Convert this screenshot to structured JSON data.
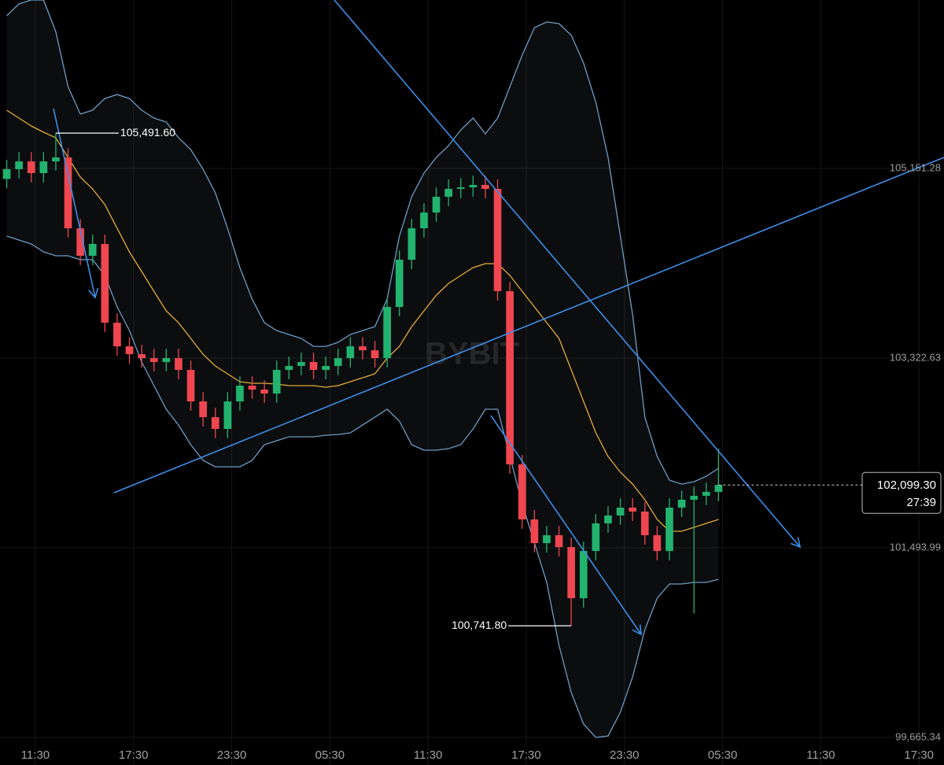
{
  "chart_data": {
    "type": "candlestick",
    "watermark": "BYBIT",
    "up_color": "#22b36f",
    "down_color": "#ef4650",
    "band_color": "#6f9cc4",
    "middle_color": "#e6ad38",
    "xlim": [
      -2.16,
      55.53
    ],
    "xticks": [
      {
        "value": 0,
        "label": "11:30"
      },
      {
        "value": 6,
        "label": "17:30"
      },
      {
        "value": 12,
        "label": "23:30"
      },
      {
        "value": 18,
        "label": "05:30"
      },
      {
        "value": 24,
        "label": "11:30"
      },
      {
        "value": 30,
        "label": "17:30"
      },
      {
        "value": 36,
        "label": "23:30"
      },
      {
        "value": 42,
        "label": "05:30"
      },
      {
        "value": 48,
        "label": "11:30"
      },
      {
        "value": 54,
        "label": "17:30"
      }
    ],
    "ylim": [
      99399.7,
      106775
    ],
    "yticks": [
      {
        "value": 99665.34,
        "label": "99,665.34"
      },
      {
        "value": 101493.99,
        "label": "101,493.99"
      },
      {
        "value": 103322.63,
        "label": "103,322.63"
      },
      {
        "value": 105151.28,
        "label": "105,151.28"
      }
    ],
    "grid": true,
    "x": [
      -1.75,
      -1,
      -0.25,
      0.5,
      1.25,
      2,
      2.75,
      3.5,
      4.25,
      5,
      5.75,
      6.5,
      7.25,
      8,
      8.75,
      9.5,
      10.25,
      11,
      11.75,
      12.5,
      13.25,
      14,
      14.75,
      15.5,
      16.25,
      17,
      17.75,
      18.5,
      19.25,
      20,
      20.75,
      21.5,
      22.25,
      23,
      23.75,
      24.5,
      25.25,
      26,
      26.75,
      27.5,
      28.25,
      29,
      29.75,
      30.5,
      31.25,
      32,
      32.75,
      33.5,
      34.25,
      35,
      35.75,
      36.5,
      37.25,
      38,
      38.75,
      39.5,
      40.25,
      41,
      41.75
    ],
    "open": [
      105050,
      105144,
      105219,
      105106,
      105219,
      105257,
      104574,
      104309,
      104423,
      103664,
      103436,
      103360,
      103322,
      103285,
      103322,
      103209,
      102905,
      102753,
      102640,
      102905,
      103057,
      103019,
      102981,
      103209,
      103247,
      103285,
      103209,
      103247,
      103322,
      103436,
      103398,
      103322,
      103816,
      104271,
      104574,
      104726,
      104878,
      104954,
      104969,
      104992,
      104954,
      103968,
      102298,
      101767,
      101539,
      101615,
      101501,
      101008,
      101463,
      101729,
      101805,
      101881,
      101843,
      101615,
      101463,
      101881,
      101957,
      101995,
      102033
    ],
    "high": [
      105234,
      105309,
      105309,
      105309,
      105491.6,
      105347,
      104664,
      104513,
      104513,
      103754,
      103526,
      103450,
      103412,
      103412,
      103412,
      103299,
      102995,
      102843,
      102995,
      103147,
      103147,
      103109,
      103299,
      103337,
      103375,
      103375,
      103337,
      103412,
      103526,
      103526,
      103488,
      103906,
      104361,
      104664,
      104816,
      104968,
      105044,
      105059,
      105082,
      105082,
      105044,
      104058,
      102388,
      101857,
      101705,
      101705,
      101591,
      101553,
      101819,
      101895,
      101971,
      101971,
      101933,
      101705,
      101971,
      102047,
      102085,
      102123,
      102450
    ],
    "low": [
      104960,
      105054,
      105016,
      105016,
      105129,
      104484,
      104219,
      104219,
      103574,
      103346,
      103270,
      103232,
      103195,
      103195,
      103119,
      102815,
      102663,
      102550,
      102550,
      102815,
      102929,
      102891,
      102891,
      103119,
      103157,
      103119,
      103119,
      103157,
      103232,
      103308,
      103232,
      103232,
      103726,
      104181,
      104484,
      104636,
      104788,
      104864,
      104879,
      104864,
      103878,
      102208,
      101677,
      101449,
      101449,
      101411,
      100741.8,
      100918,
      101373,
      101639,
      101715,
      101753,
      101525,
      101373,
      101373,
      101791,
      100860,
      101905,
      101943
    ],
    "close": [
      105144,
      105219,
      105106,
      105219,
      105257,
      104574,
      104309,
      104423,
      103664,
      103436,
      103360,
      103322,
      103285,
      103322,
      103209,
      102905,
      102753,
      102640,
      102905,
      103057,
      103019,
      102981,
      103209,
      103247,
      103285,
      103209,
      103247,
      103322,
      103436,
      103398,
      103322,
      103816,
      104271,
      104574,
      104726,
      104878,
      104954,
      104969,
      104992,
      104954,
      103968,
      102298,
      101767,
      101539,
      101615,
      101501,
      101008,
      101463,
      101729,
      101805,
      101881,
      101843,
      101615,
      101463,
      101881,
      101957,
      101995,
      102033,
      102099.3
    ],
    "upper": [
      106623,
      106737,
      106775,
      106775,
      106471,
      105940,
      105675,
      105713,
      105826,
      105864,
      105826,
      105713,
      105637,
      105599,
      105447,
      105333,
      105144,
      104916,
      104574,
      104195,
      103892,
      103664,
      103588,
      103550,
      103512,
      103436,
      103436,
      103474,
      103550,
      103588,
      103626,
      103892,
      104499,
      104878,
      105106,
      105257,
      105371,
      105523,
      105637,
      105485,
      105637,
      105940,
      106244,
      106509,
      106563,
      106547,
      106434,
      106168,
      105789,
      105257,
      104499,
      103740,
      102753,
      102374,
      102146,
      102108,
      102131,
      102184,
      102260
    ],
    "middle": [
      105713,
      105637,
      105561,
      105500,
      105447,
      105257,
      105068,
      104954,
      104802,
      104574,
      104347,
      104157,
      103967,
      103778,
      103664,
      103512,
      103360,
      103247,
      103171,
      103095,
      103080,
      103080,
      103072,
      103057,
      103057,
      103057,
      103042,
      103057,
      103095,
      103133,
      103171,
      103322,
      103436,
      103626,
      103778,
      103929,
      104043,
      104119,
      104195,
      104233,
      104233,
      104119,
      103967,
      103816,
      103664,
      103512,
      103209,
      102905,
      102602,
      102374,
      102222,
      102108,
      101957,
      101767,
      101653,
      101653,
      101691,
      101729,
      101767
    ],
    "lower": [
      104499,
      104461,
      104423,
      104347,
      104309,
      104309,
      104271,
      104271,
      104119,
      103816,
      103588,
      103285,
      103057,
      102829,
      102677,
      102488,
      102336,
      102275,
      102275,
      102275,
      102336,
      102488,
      102526,
      102564,
      102564,
      102564,
      102579,
      102586,
      102602,
      102677,
      102753,
      102829,
      102715,
      102488,
      102435,
      102435,
      102450,
      102488,
      102640,
      102829,
      102829,
      102374,
      101919,
      101539,
      101160,
      100553,
      100098,
      99794,
      99665,
      99680,
      99908,
      100249,
      100705,
      101008,
      101145,
      101145,
      101160,
      101160,
      101190
    ],
    "annotations": [
      {
        "label": "105,491.60",
        "value": 105491.6
      },
      {
        "label": "100,741.80",
        "value": 100741.8
      }
    ],
    "last_price": {
      "value": 102099.3,
      "label": "102,099.30",
      "countdown": "27:39"
    }
  }
}
